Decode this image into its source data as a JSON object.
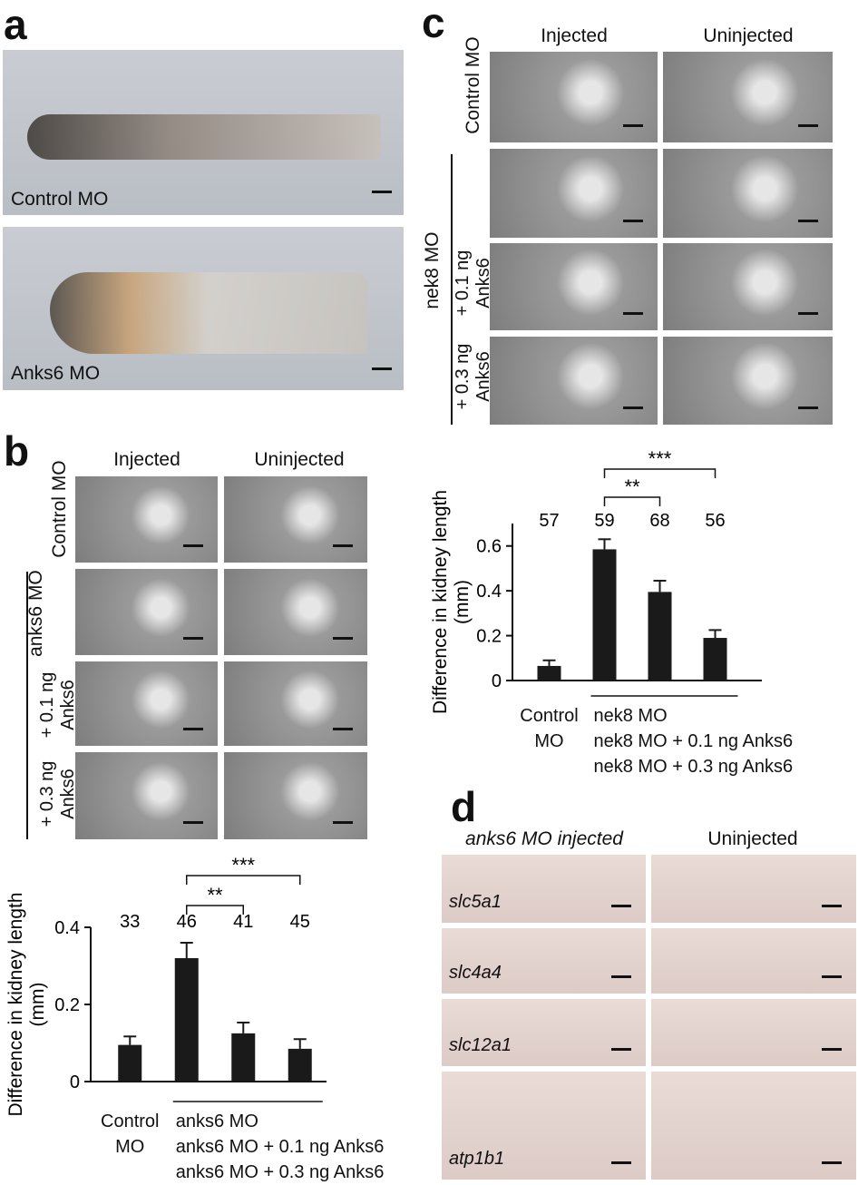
{
  "panel_a": {
    "label": "a",
    "captions": [
      "Control MO",
      "Anks6 MO"
    ]
  },
  "panel_b": {
    "label": "b",
    "columns": [
      "Injected",
      "Uninjected"
    ],
    "rows": [
      "Control MO",
      "anks6 MO",
      "+ 0.1 ng Anks6",
      "+ 0.3 ng Anks6"
    ]
  },
  "panel_c": {
    "label": "c",
    "columns": [
      "Injected",
      "Uninjected"
    ],
    "rows": [
      "Control MO",
      "nek8 MO",
      "+ 0.1 ng Anks6",
      "+ 0.3 ng Anks6"
    ]
  },
  "panel_d": {
    "label": "d",
    "columns": [
      "anks6 MO injected",
      "Uninjected"
    ],
    "rows": [
      "slc5a1",
      "slc4a4",
      "slc12a1",
      "atp1b1"
    ]
  },
  "chart_data": [
    {
      "type": "bar",
      "y_label": "Difference in kidney length (mm)",
      "categories": [
        "Control MO",
        "anks6 MO",
        "anks6 MO + 0.1 ng Anks6",
        "anks6 MO + 0.3 ng Anks6"
      ],
      "values": [
        0.095,
        0.32,
        0.125,
        0.085
      ],
      "errors": [
        0.022,
        0.04,
        0.028,
        0.025
      ],
      "n": [
        33,
        46,
        41,
        45
      ],
      "significance": [
        "**",
        "***"
      ],
      "color": "#1a1a1a",
      "ylim": [
        0,
        0.4
      ],
      "yticks": [
        0,
        0.2,
        0.4
      ]
    },
    {
      "type": "bar",
      "y_label": "Difference in kidney length (mm)",
      "categories": [
        "Control MO",
        "nek8 MO",
        "nek8 MO + 0.1 ng Anks6",
        "nek8 MO + 0.3 ng Anks6"
      ],
      "values": [
        0.065,
        0.585,
        0.395,
        0.19
      ],
      "errors": [
        0.025,
        0.045,
        0.05,
        0.035
      ],
      "n": [
        57,
        59,
        68,
        56
      ],
      "significance": [
        "**",
        "***"
      ],
      "color": "#1a1a1a",
      "ylim": [
        0,
        0.7
      ],
      "yticks": [
        0,
        0.2,
        0.4,
        0.6
      ]
    }
  ]
}
